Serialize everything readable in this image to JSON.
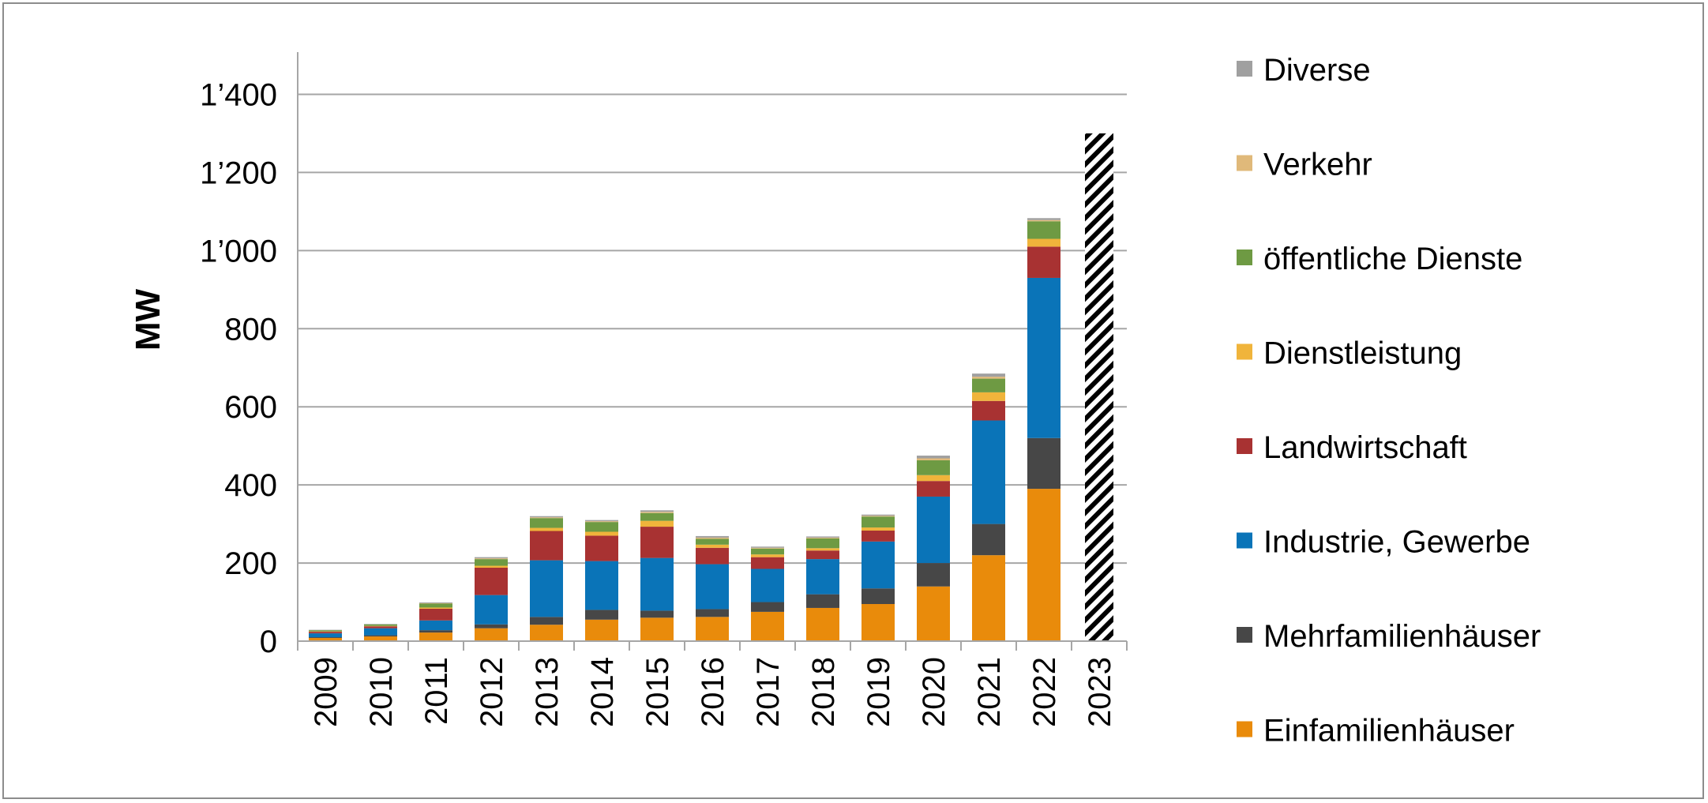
{
  "chart_data": {
    "type": "bar",
    "stacked": true,
    "ylabel": "MW",
    "xlabel": "",
    "title": "",
    "ylim": [
      0,
      1500
    ],
    "yticks": [
      0,
      200,
      400,
      600,
      800,
      1000,
      1200,
      1400
    ],
    "ytick_labels": [
      "0",
      "200",
      "400",
      "600",
      "800",
      "1’000",
      "1’200",
      "1’400"
    ],
    "grid": "horizontal",
    "legend_position": "right",
    "categories": [
      "2009",
      "2010",
      "2011",
      "2012",
      "2013",
      "2014",
      "2015",
      "2016",
      "2017",
      "2018",
      "2019",
      "2020",
      "2021",
      "2022",
      "2023"
    ],
    "series": [
      {
        "name": "Einfamilienhäuser",
        "color": "#e98b0b",
        "values": [
          8,
          12,
          22,
          33,
          42,
          55,
          60,
          62,
          75,
          85,
          95,
          140,
          220,
          390,
          0
        ]
      },
      {
        "name": "Mehrfamilienhäuser",
        "color": "#474747",
        "values": [
          2,
          3,
          6,
          10,
          20,
          25,
          18,
          20,
          25,
          35,
          40,
          60,
          80,
          130,
          0
        ]
      },
      {
        "name": "Industrie, Gewerbe",
        "color": "#0a74b8",
        "values": [
          10,
          18,
          25,
          75,
          145,
          125,
          135,
          115,
          85,
          90,
          120,
          170,
          265,
          410,
          0
        ]
      },
      {
        "name": "Landwirtschaft",
        "color": "#a83232",
        "values": [
          4,
          5,
          30,
          70,
          75,
          65,
          80,
          42,
          30,
          22,
          28,
          40,
          50,
          80,
          0
        ]
      },
      {
        "name": "Dienstleistung",
        "color": "#f0b43b",
        "values": [
          1,
          1,
          3,
          5,
          8,
          10,
          15,
          8,
          7,
          6,
          8,
          15,
          22,
          20,
          0
        ]
      },
      {
        "name": "öffentliche Dienste",
        "color": "#6e9a43",
        "values": [
          3,
          4,
          10,
          17,
          25,
          25,
          20,
          15,
          15,
          25,
          28,
          38,
          35,
          45,
          0
        ]
      },
      {
        "name": "Verkehr",
        "color": "#e0b97a",
        "values": [
          0,
          0,
          1,
          2,
          2,
          2,
          3,
          3,
          2,
          2,
          2,
          5,
          5,
          3,
          0
        ]
      },
      {
        "name": "Diverse",
        "color": "#a0a0a0",
        "values": [
          1,
          1,
          2,
          3,
          3,
          3,
          4,
          4,
          3,
          3,
          3,
          7,
          8,
          5,
          0
        ]
      }
    ],
    "projection": {
      "category": "2023",
      "value": 1300,
      "pattern": "diagonal-hatch"
    },
    "legend_order": [
      "Diverse",
      "Verkehr",
      "öffentliche Dienste",
      "Dienstleistung",
      "Landwirtschaft",
      "Industrie, Gewerbe",
      "Mehrfamilienhäuser",
      "Einfamilienhäuser"
    ]
  }
}
